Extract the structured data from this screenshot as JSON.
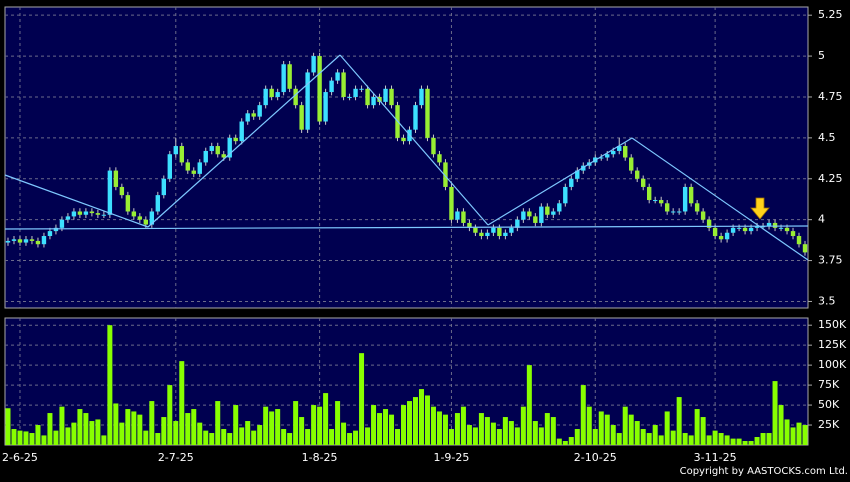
{
  "chart_data": [
    {
      "type": "candlestick",
      "up_color": "#3de0ff",
      "down_color": "#99ee33",
      "ylim": [
        3.46,
        5.3
      ],
      "yticks": [
        3.5,
        3.75,
        4,
        4.25,
        4.5,
        4.75,
        5,
        5.25
      ],
      "grid": true,
      "open": [
        3.86,
        3.87,
        3.88,
        3.86,
        3.88,
        3.87,
        3.85,
        3.9,
        3.93,
        3.95,
        4,
        4.02,
        4.05,
        4.03,
        4.05,
        4.04,
        4.03,
        4.03,
        4.3,
        4.2,
        4.15,
        4.05,
        4.02,
        4,
        3.97,
        4.05,
        4.15,
        4.25,
        4.4,
        4.45,
        4.35,
        4.3,
        4.28,
        4.35,
        4.42,
        4.45,
        4.4,
        4.38,
        4.5,
        4.48,
        4.6,
        4.65,
        4.63,
        4.7,
        4.8,
        4.75,
        4.78,
        4.95,
        4.8,
        4.7,
        4.55,
        4.9,
        5,
        4.6,
        4.78,
        4.85,
        4.9,
        4.75,
        4.75,
        4.8,
        4.8,
        4.7,
        4.75,
        4.72,
        4.8,
        4.7,
        4.5,
        4.48,
        4.55,
        4.7,
        4.8,
        4.5,
        4.4,
        4.35,
        4.2,
        4,
        4.05,
        3.98,
        3.95,
        3.92,
        3.9,
        3.92,
        3.95,
        3.9,
        3.92,
        3.95,
        4,
        4.05,
        4.02,
        3.98,
        4.08,
        4.03,
        4.05,
        4.1,
        4.2,
        4.25,
        4.3,
        4.33,
        4.35,
        4.38,
        4.38,
        4.4,
        4.42,
        4.45,
        4.38,
        4.3,
        4.25,
        4.2,
        4.12,
        4.12,
        4.1,
        4.05,
        4.05,
        4.05,
        4.2,
        4.1,
        4.05,
        4,
        3.95,
        3.9,
        3.88,
        3.92,
        3.95,
        3.95,
        3.93,
        3.95,
        3.96,
        3.96,
        3.98,
        3.95,
        3.95,
        3.93,
        3.9,
        3.85
      ],
      "high": [
        3.89,
        3.9,
        3.9,
        3.9,
        3.9,
        3.89,
        3.92,
        3.95,
        3.97,
        4.02,
        4.04,
        4.07,
        4.07,
        4.07,
        4.07,
        4.06,
        4.05,
        4.32,
        4.32,
        4.22,
        4.17,
        4.07,
        4.04,
        4.02,
        4.07,
        4.17,
        4.27,
        4.42,
        4.5,
        4.47,
        4.37,
        4.32,
        4.37,
        4.44,
        4.47,
        4.47,
        4.42,
        4.52,
        4.52,
        4.62,
        4.67,
        4.67,
        4.72,
        4.82,
        4.82,
        4.8,
        4.97,
        4.97,
        4.82,
        4.72,
        4.92,
        5.02,
        5.02,
        4.8,
        4.87,
        4.92,
        4.92,
        4.77,
        4.82,
        4.82,
        4.82,
        4.77,
        4.77,
        4.82,
        4.82,
        4.72,
        4.52,
        4.57,
        4.72,
        4.82,
        4.82,
        4.52,
        4.42,
        4.37,
        4.22,
        4.07,
        4.07,
        4,
        3.97,
        3.94,
        3.94,
        3.97,
        3.97,
        3.94,
        3.97,
        4.02,
        4.07,
        4.07,
        4.04,
        4.1,
        4.1,
        4.07,
        4.12,
        4.22,
        4.27,
        4.32,
        4.35,
        4.37,
        4.4,
        4.4,
        4.42,
        4.44,
        4.5,
        4.47,
        4.4,
        4.32,
        4.27,
        4.22,
        4.14,
        4.14,
        4.12,
        4.07,
        4.07,
        4.22,
        4.22,
        4.12,
        4.07,
        4.02,
        3.97,
        3.92,
        3.94,
        3.97,
        3.97,
        3.97,
        3.97,
        3.98,
        3.98,
        4,
        4,
        3.97,
        3.97,
        3.95,
        3.92,
        3.87
      ],
      "low": [
        3.84,
        3.85,
        3.84,
        3.84,
        3.85,
        3.83,
        3.83,
        3.88,
        3.91,
        3.93,
        3.98,
        4,
        4.01,
        4.01,
        4.02,
        4.01,
        4.01,
        4.01,
        4.18,
        4.13,
        4.03,
        4,
        3.98,
        3.95,
        3.95,
        4.03,
        4.13,
        4.23,
        4.38,
        4.33,
        4.28,
        4.26,
        4.26,
        4.33,
        4.4,
        4.38,
        4.36,
        4.36,
        4.46,
        4.46,
        4.58,
        4.61,
        4.61,
        4.68,
        4.73,
        4.73,
        4.76,
        4.78,
        4.68,
        4.53,
        4.53,
        4.88,
        4.58,
        4.58,
        4.76,
        4.83,
        4.73,
        4.73,
        4.73,
        4.78,
        4.68,
        4.68,
        4.7,
        4.7,
        4.68,
        4.48,
        4.46,
        4.46,
        4.53,
        4.68,
        4.48,
        4.38,
        4.33,
        4.18,
        3.98,
        3.98,
        3.96,
        3.93,
        3.9,
        3.88,
        3.88,
        3.9,
        3.88,
        3.88,
        3.9,
        3.93,
        3.98,
        4,
        3.96,
        3.96,
        4.01,
        4.01,
        4.03,
        4.08,
        4.18,
        4.23,
        4.28,
        4.31,
        4.33,
        4.36,
        4.36,
        4.38,
        4.4,
        4.36,
        4.28,
        4.23,
        4.18,
        4.1,
        4.1,
        4.08,
        4.03,
        4.03,
        4.03,
        4.03,
        4.08,
        4.03,
        3.98,
        3.93,
        3.88,
        3.86,
        3.86,
        3.9,
        3.93,
        3.91,
        3.91,
        3.93,
        3.94,
        3.94,
        3.93,
        3.93,
        3.91,
        3.88,
        3.83,
        3.78
      ],
      "close": [
        3.87,
        3.88,
        3.86,
        3.88,
        3.87,
        3.85,
        3.9,
        3.93,
        3.95,
        4,
        4.02,
        4.05,
        4.03,
        4.05,
        4.04,
        4.03,
        4.03,
        4.3,
        4.2,
        4.15,
        4.05,
        4.02,
        4,
        3.97,
        4.05,
        4.15,
        4.25,
        4.4,
        4.45,
        4.35,
        4.3,
        4.28,
        4.35,
        4.42,
        4.45,
        4.4,
        4.38,
        4.5,
        4.48,
        4.6,
        4.65,
        4.63,
        4.7,
        4.8,
        4.75,
        4.78,
        4.95,
        4.8,
        4.7,
        4.55,
        4.9,
        5,
        4.6,
        4.78,
        4.85,
        4.9,
        4.75,
        4.75,
        4.8,
        4.8,
        4.7,
        4.75,
        4.72,
        4.8,
        4.7,
        4.5,
        4.48,
        4.55,
        4.7,
        4.8,
        4.5,
        4.4,
        4.35,
        4.2,
        4,
        4.05,
        3.98,
        3.95,
        3.92,
        3.9,
        3.92,
        3.95,
        3.9,
        3.92,
        3.95,
        4,
        4.05,
        4.02,
        3.98,
        4.08,
        4.03,
        4.05,
        4.1,
        4.2,
        4.25,
        4.3,
        4.33,
        4.35,
        4.38,
        4.38,
        4.4,
        4.42,
        4.45,
        4.38,
        4.3,
        4.25,
        4.2,
        4.12,
        4.12,
        4.1,
        4.05,
        4.05,
        4.05,
        4.2,
        4.1,
        4.05,
        4,
        3.95,
        3.9,
        3.88,
        3.92,
        3.95,
        3.95,
        3.93,
        3.95,
        3.96,
        3.96,
        3.98,
        3.95,
        3.95,
        3.93,
        3.9,
        3.85,
        3.8
      ]
    },
    {
      "type": "bar",
      "color": "#88ff00",
      "ylim": [
        0,
        159000
      ],
      "yticks": [
        {
          "value": 25000,
          "label": "25K"
        },
        {
          "value": 50000,
          "label": "50K"
        },
        {
          "value": 75000,
          "label": "75K"
        },
        {
          "value": 100000,
          "label": "100K"
        },
        {
          "value": 125000,
          "label": "125K"
        },
        {
          "value": 150000,
          "label": "150K"
        }
      ],
      "grid": true,
      "categories": [
        null,
        null,
        "2-6-25",
        null,
        null,
        null,
        null,
        null,
        null,
        null,
        null,
        null,
        null,
        null,
        null,
        null,
        null,
        null,
        null,
        null,
        null,
        null,
        null,
        null,
        null,
        null,
        null,
        null,
        "2-7-25",
        null,
        null,
        null,
        null,
        null,
        null,
        null,
        null,
        null,
        null,
        null,
        null,
        null,
        null,
        null,
        null,
        null,
        null,
        null,
        null,
        null,
        null,
        null,
        "1-8-25",
        null,
        null,
        null,
        null,
        null,
        null,
        null,
        null,
        null,
        null,
        null,
        null,
        null,
        null,
        null,
        null,
        null,
        null,
        null,
        null,
        null,
        "1-9-25",
        null,
        null,
        null,
        null,
        null,
        null,
        null,
        null,
        null,
        null,
        null,
        null,
        null,
        null,
        null,
        null,
        null,
        null,
        null,
        null,
        null,
        null,
        null,
        "2-10-25",
        null,
        null,
        null,
        null,
        null,
        null,
        null,
        null,
        null,
        null,
        null,
        null,
        null,
        null,
        null,
        null,
        null,
        null,
        null,
        "3-11-25",
        null,
        null,
        null,
        null,
        null,
        null,
        null,
        null,
        null,
        null,
        null,
        null,
        null,
        null,
        null
      ],
      "values": [
        46000,
        20000,
        18000,
        17000,
        15000,
        25000,
        12000,
        40000,
        18000,
        48000,
        22000,
        28000,
        45000,
        40000,
        30000,
        32000,
        12000,
        150000,
        52000,
        28000,
        45000,
        42000,
        38000,
        18000,
        55000,
        15000,
        35000,
        75000,
        30000,
        105000,
        40000,
        45000,
        28000,
        18000,
        15000,
        55000,
        20000,
        15000,
        50000,
        22000,
        30000,
        18000,
        25000,
        48000,
        42000,
        45000,
        20000,
        15000,
        55000,
        35000,
        20000,
        50000,
        48000,
        65000,
        20000,
        55000,
        28000,
        15000,
        18000,
        115000,
        22000,
        50000,
        40000,
        45000,
        38000,
        20000,
        50000,
        55000,
        60000,
        70000,
        62000,
        48000,
        42000,
        38000,
        20000,
        40000,
        48000,
        25000,
        22000,
        40000,
        35000,
        28000,
        20000,
        35000,
        30000,
        22000,
        48000,
        100000,
        30000,
        22000,
        40000,
        35000,
        8000,
        5000,
        10000,
        20000,
        75000,
        48000,
        20000,
        42000,
        38000,
        25000,
        15000,
        48000,
        38000,
        30000,
        20000,
        15000,
        25000,
        12000,
        42000,
        18000,
        60000,
        15000,
        12000,
        45000,
        35000,
        12000,
        18000,
        15000,
        12000,
        8000,
        8000,
        5000,
        5000,
        10000,
        15000,
        15000,
        80000,
        50000,
        32000,
        22000,
        28000,
        25000
      ]
    }
  ],
  "copyright": "Copyright by AASTOCKS.com Ltd."
}
